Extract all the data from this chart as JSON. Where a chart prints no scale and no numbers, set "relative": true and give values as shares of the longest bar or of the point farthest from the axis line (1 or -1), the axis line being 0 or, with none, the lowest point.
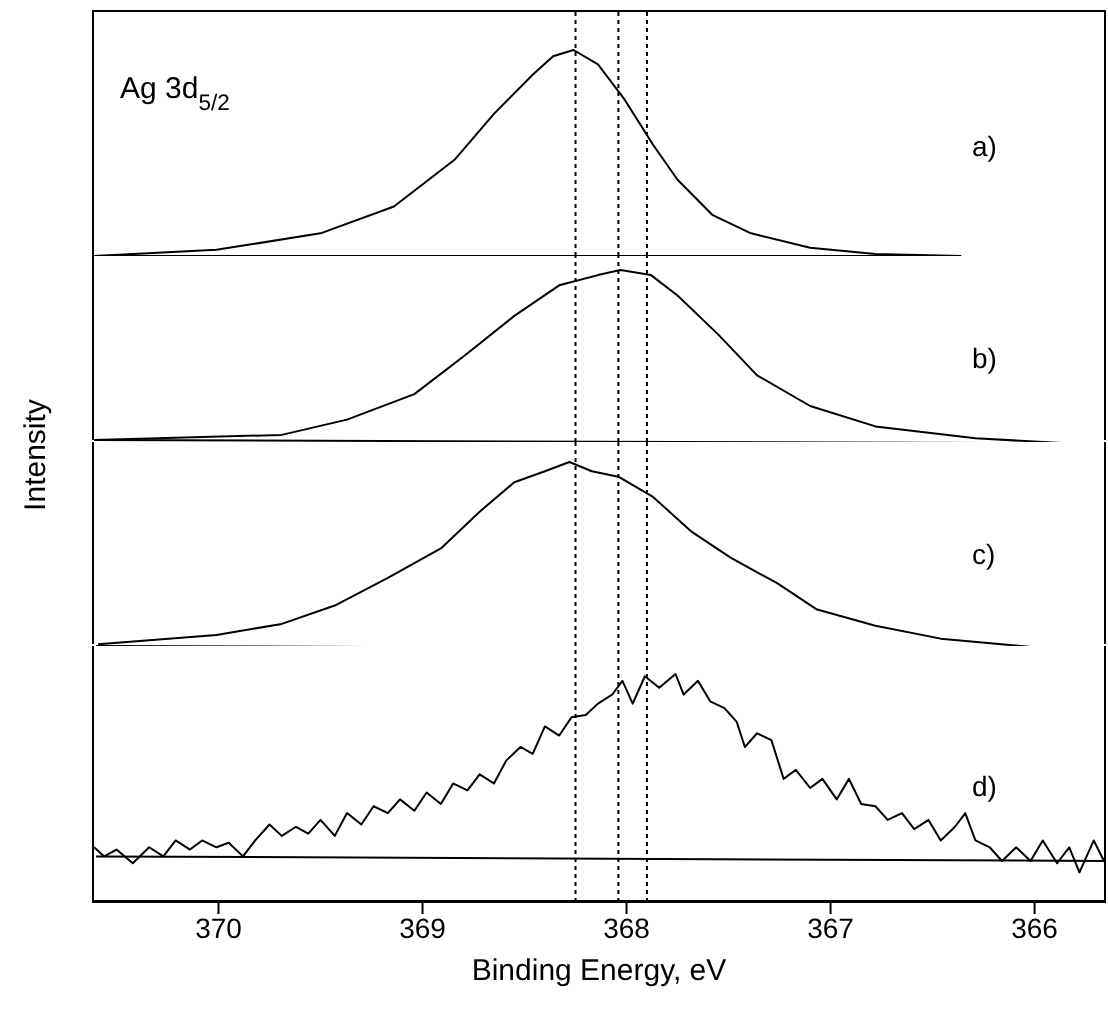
{
  "chart_data": [
    {
      "type": "line",
      "relative": true,
      "title": "Ag 3d$_{5/2}$",
      "ylabel": "Intensity",
      "annotations": [
        "a)"
      ],
      "xlim": [
        370.62,
        365.65
      ],
      "xticks": [
        370,
        369,
        368,
        367,
        366
      ],
      "tick_labels": false,
      "marker": "none",
      "line_style": "solid",
      "ref_lines": [
        {
          "axis": "x",
          "value": 368.25,
          "line_style": "dotted"
        },
        {
          "axis": "x",
          "value": 368.04,
          "line_style": "dotted"
        },
        {
          "axis": "x",
          "value": 367.9,
          "line_style": "dotted"
        }
      ],
      "series": [
        {
          "color": "#000000",
          "x": [
            370.61,
            370.01,
            369.5,
            369.14,
            368.84,
            368.65,
            368.46,
            368.36,
            368.26,
            368.14,
            368.01,
            367.87,
            367.75,
            367.58,
            367.39,
            367.1,
            366.78,
            366.36
          ],
          "values": [
            0,
            0.03,
            0.11,
            0.24,
            0.47,
            0.69,
            0.88,
            0.97,
            1,
            0.93,
            0.76,
            0.54,
            0.37,
            0.2,
            0.11,
            0.04,
            0.01,
            0
          ]
        },
        {
          "color": "#000000",
          "x": [
            370.6,
            366.36
          ],
          "values": [
            0,
            0
          ]
        }
      ]
    },
    {
      "type": "line",
      "relative": true,
      "annotations": [
        "b)"
      ],
      "xlim": [
        370.62,
        365.65
      ],
      "xticks": [
        370,
        369,
        368,
        367,
        366
      ],
      "tick_labels": false,
      "marker": "none",
      "line_style": "solid",
      "ref_lines": [
        {
          "axis": "x",
          "value": 368.25,
          "line_style": "dotted"
        },
        {
          "axis": "x",
          "value": 368.04,
          "line_style": "dotted"
        },
        {
          "axis": "x",
          "value": 367.9,
          "line_style": "dotted"
        }
      ],
      "series": [
        {
          "color": "#000000",
          "x": [
            370.61,
            369.69,
            369.37,
            369.04,
            368.79,
            368.55,
            368.33,
            368.14,
            368.03,
            367.88,
            367.75,
            367.55,
            367.36,
            367.1,
            366.78,
            366.29,
            365.68
          ],
          "values": [
            0,
            0.03,
            0.12,
            0.27,
            0.5,
            0.73,
            0.91,
            0.97,
            1,
            0.97,
            0.85,
            0.62,
            0.38,
            0.2,
            0.08,
            0.01,
            -0.03
          ]
        },
        {
          "color": "#000000",
          "x": [
            370.6,
            365.65
          ],
          "values": [
            0,
            -0.02
          ]
        }
      ]
    },
    {
      "type": "line",
      "relative": true,
      "annotations": [
        "c)"
      ],
      "xlim": [
        370.62,
        365.65
      ],
      "xticks": [
        370,
        369,
        368,
        367,
        366
      ],
      "tick_labels": false,
      "marker": "none",
      "line_style": "solid",
      "ref_lines": [
        {
          "axis": "x",
          "value": 368.25,
          "line_style": "dotted"
        },
        {
          "axis": "x",
          "value": 368.04,
          "line_style": "dotted"
        },
        {
          "axis": "x",
          "value": 367.9,
          "line_style": "dotted"
        }
      ],
      "series": [
        {
          "color": "#000000",
          "x": [
            370.59,
            370.01,
            369.69,
            369.43,
            369.17,
            368.91,
            368.72,
            368.55,
            368.4,
            368.28,
            368.17,
            368.04,
            367.87,
            367.68,
            367.49,
            367.26,
            367.07,
            366.78,
            366.46,
            366.07,
            365.68
          ],
          "values": [
            0.01,
            0.06,
            0.12,
            0.22,
            0.37,
            0.53,
            0.73,
            0.89,
            0.95,
            1,
            0.95,
            0.92,
            0.81,
            0.62,
            0.48,
            0.34,
            0.2,
            0.11,
            0.04,
            0,
            -0.04
          ]
        },
        {
          "color": "#000000",
          "x": [
            370.6,
            365.65
          ],
          "values": [
            0,
            -0.02
          ]
        }
      ]
    },
    {
      "type": "line",
      "relative": true,
      "xlabel": "Binding Energy, eV",
      "annotations": [
        "d)"
      ],
      "xlim": [
        370.62,
        365.65
      ],
      "xticks": [
        370,
        369,
        368,
        367,
        366
      ],
      "tick_labels": "x",
      "marker": "none",
      "line_style": "solid",
      "ref_lines": [
        {
          "axis": "x",
          "value": 368.25,
          "line_style": "dotted"
        },
        {
          "axis": "x",
          "value": 368.04,
          "line_style": "dotted"
        },
        {
          "axis": "x",
          "value": 367.9,
          "line_style": "dotted"
        }
      ],
      "series": [
        {
          "color": "#000000",
          "x": [
            370.61,
            370.56,
            370.5,
            370.42,
            370.34,
            370.27,
            370.21,
            370.14,
            370.08,
            370.01,
            369.95,
            369.88,
            369.82,
            369.75,
            369.69,
            369.62,
            369.56,
            369.5,
            369.43,
            369.37,
            369.3,
            369.24,
            369.17,
            369.11,
            369.04,
            368.98,
            368.91,
            368.85,
            368.78,
            368.72,
            368.65,
            368.59,
            368.52,
            368.46,
            368.4,
            368.33,
            368.27,
            368.2,
            368.14,
            368.07,
            368.02,
            367.97,
            367.91,
            367.84,
            367.76,
            367.72,
            367.65,
            367.59,
            367.52,
            367.46,
            367.42,
            367.36,
            367.29,
            367.23,
            367.17,
            367.1,
            367.04,
            366.97,
            366.91,
            366.85,
            366.78,
            366.72,
            366.65,
            366.59,
            366.52,
            366.46,
            366.39,
            366.34,
            366.29,
            366.22,
            366.16,
            366.09,
            366.02,
            365.96,
            365.89,
            365.83,
            365.78,
            365.71,
            365.66
          ],
          "values": [
            0.24,
            0.2,
            0.23,
            0.17,
            0.24,
            0.2,
            0.27,
            0.23,
            0.27,
            0.24,
            0.26,
            0.2,
            0.27,
            0.34,
            0.29,
            0.33,
            0.3,
            0.36,
            0.29,
            0.39,
            0.34,
            0.42,
            0.39,
            0.45,
            0.4,
            0.48,
            0.43,
            0.52,
            0.49,
            0.56,
            0.52,
            0.62,
            0.68,
            0.65,
            0.77,
            0.73,
            0.81,
            0.82,
            0.87,
            0.91,
            0.97,
            0.87,
            0.99,
            0.94,
            1,
            0.91,
            0.97,
            0.88,
            0.85,
            0.79,
            0.68,
            0.74,
            0.71,
            0.54,
            0.58,
            0.5,
            0.54,
            0.45,
            0.54,
            0.43,
            0.42,
            0.36,
            0.39,
            0.32,
            0.36,
            0.27,
            0.33,
            0.39,
            0.27,
            0.24,
            0.18,
            0.24,
            0.18,
            0.27,
            0.17,
            0.24,
            0.13,
            0.27,
            0.18
          ]
        },
        {
          "color": "#000000",
          "x": [
            370.6,
            365.65
          ],
          "values": [
            0.2,
            0.18
          ]
        }
      ]
    }
  ]
}
